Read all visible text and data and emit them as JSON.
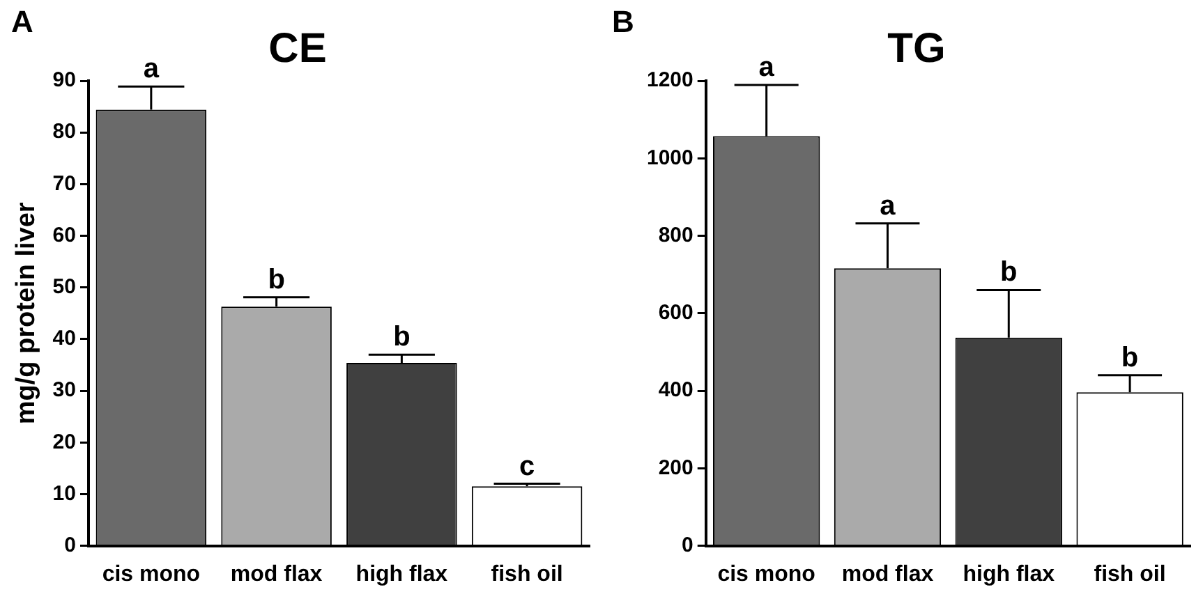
{
  "chart_data": [
    {
      "type": "bar",
      "title": "CE",
      "ylabel": "mg/g protein liver",
      "categories": [
        "cis mono",
        "mod flax",
        "high flax",
        "fish oil"
      ],
      "values": [
        84.4,
        46.3,
        35.4,
        11.5
      ],
      "colors": [
        "#6a6a6a",
        "#aaaaaa",
        "#404040",
        "#ffffff"
      ],
      "errors": [
        [
          84.4,
          88.9
        ],
        [
          46.3,
          48.1
        ],
        [
          35.4,
          37.0
        ],
        [
          11.5,
          12.0
        ]
      ],
      "ylim": [
        0,
        90
      ],
      "yticks": [
        0,
        10,
        20,
        30,
        40,
        50,
        60,
        70,
        80,
        90
      ],
      "grid": false,
      "legend": false,
      "annotations": [
        "A",
        {
          "text": "a",
          "x": "cis mono",
          "y": 88.9
        },
        {
          "text": "b",
          "x": "mod flax",
          "y": 48.1
        },
        {
          "text": "b",
          "x": "high flax",
          "y": 37.0
        },
        {
          "text": "c",
          "x": "fish oil",
          "y": 12.0
        }
      ]
    },
    {
      "type": "bar",
      "title": "TG",
      "categories": [
        "cis mono",
        "mod flax",
        "high flax",
        "fish oil"
      ],
      "values": [
        1057,
        716,
        537,
        396
      ],
      "colors": [
        "#6a6a6a",
        "#aaaaaa",
        "#404040",
        "#ffffff"
      ],
      "errors": [
        [
          1057,
          1189
        ],
        [
          716,
          832
        ],
        [
          537,
          660
        ],
        [
          396,
          440
        ]
      ],
      "ylim": [
        0,
        1200
      ],
      "yticks": [
        0,
        200,
        400,
        600,
        800,
        1000,
        1200
      ],
      "grid": false,
      "legend": false,
      "annotations": [
        "B",
        {
          "text": "a",
          "x": "cis mono",
          "y": 1189
        },
        {
          "text": "a",
          "x": "mod flax",
          "y": 832
        },
        {
          "text": "b",
          "x": "high flax",
          "y": 660
        },
        {
          "text": "b",
          "x": "fish oil",
          "y": 440
        }
      ]
    }
  ]
}
